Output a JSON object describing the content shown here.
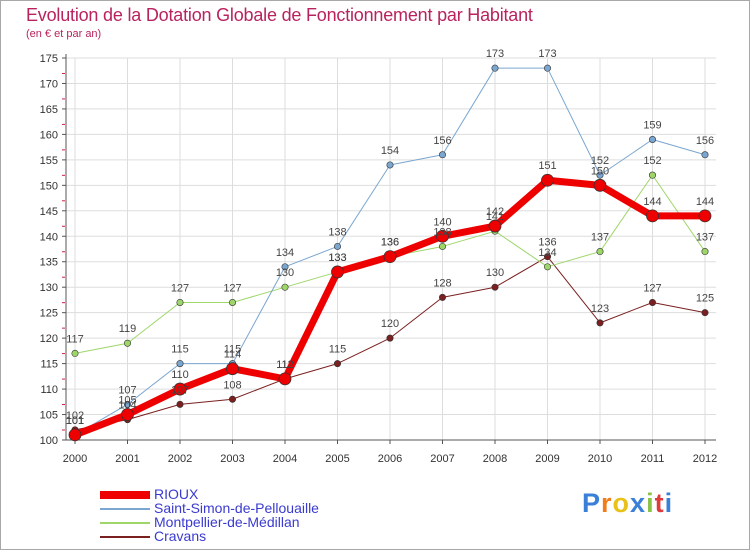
{
  "title": "Evolution de la Dotation Globale de Fonctionnement par Habitant",
  "subtitle": "(en € et par an)",
  "logo": {
    "text": "Proxiti"
  },
  "colors": {
    "title": "#b8235e",
    "axis": "#555555",
    "grid": "#dddddd",
    "legend_text": "#3a3ad0"
  },
  "chart_data": {
    "type": "line",
    "title": "Evolution de la Dotation Globale de Fonctionnement par Habitant",
    "subtitle": "(en € et par an)",
    "xlabel": "",
    "ylabel": "",
    "x": [
      "2000",
      "2001",
      "2002",
      "2003",
      "2004",
      "2005",
      "2006",
      "2007",
      "2008",
      "2009",
      "2010",
      "2011",
      "2012"
    ],
    "ylim": [
      100,
      175
    ],
    "yticks": [
      100,
      105,
      110,
      115,
      120,
      125,
      130,
      135,
      140,
      145,
      150,
      155,
      160,
      165,
      170,
      175
    ],
    "grid": true,
    "legend": "bottom-left",
    "series": [
      {
        "name": "Cravans",
        "color": "#7a2020",
        "width": 1,
        "marker": 3.2,
        "values": [
          102,
          104,
          107,
          108,
          112,
          115,
          120,
          128,
          130,
          136,
          123,
          127,
          125
        ]
      },
      {
        "name": "Montpellier-de-Médillan",
        "color": "#9ed66a",
        "width": 1,
        "marker": 3.2,
        "values": [
          117,
          119,
          127,
          127,
          130,
          133,
          136,
          138,
          141,
          134,
          137,
          152,
          137
        ]
      },
      {
        "name": "Saint-Simon-de-Pellouaille",
        "color": "#7aa6d0",
        "width": 1,
        "marker": 3.2,
        "values": [
          101,
          107,
          115,
          115,
          134,
          138,
          154,
          156,
          173,
          173,
          152,
          159,
          156
        ]
      },
      {
        "name": "RIOUX",
        "color": "#ee0000",
        "width": 7,
        "marker": 6,
        "values": [
          101,
          105,
          110,
          114,
          112,
          133,
          136,
          140,
          142,
          151,
          150,
          144,
          144
        ]
      }
    ],
    "legend_order": [
      "RIOUX",
      "Saint-Simon-de-Pellouaille",
      "Montpellier-de-Médillan",
      "Cravans"
    ]
  }
}
